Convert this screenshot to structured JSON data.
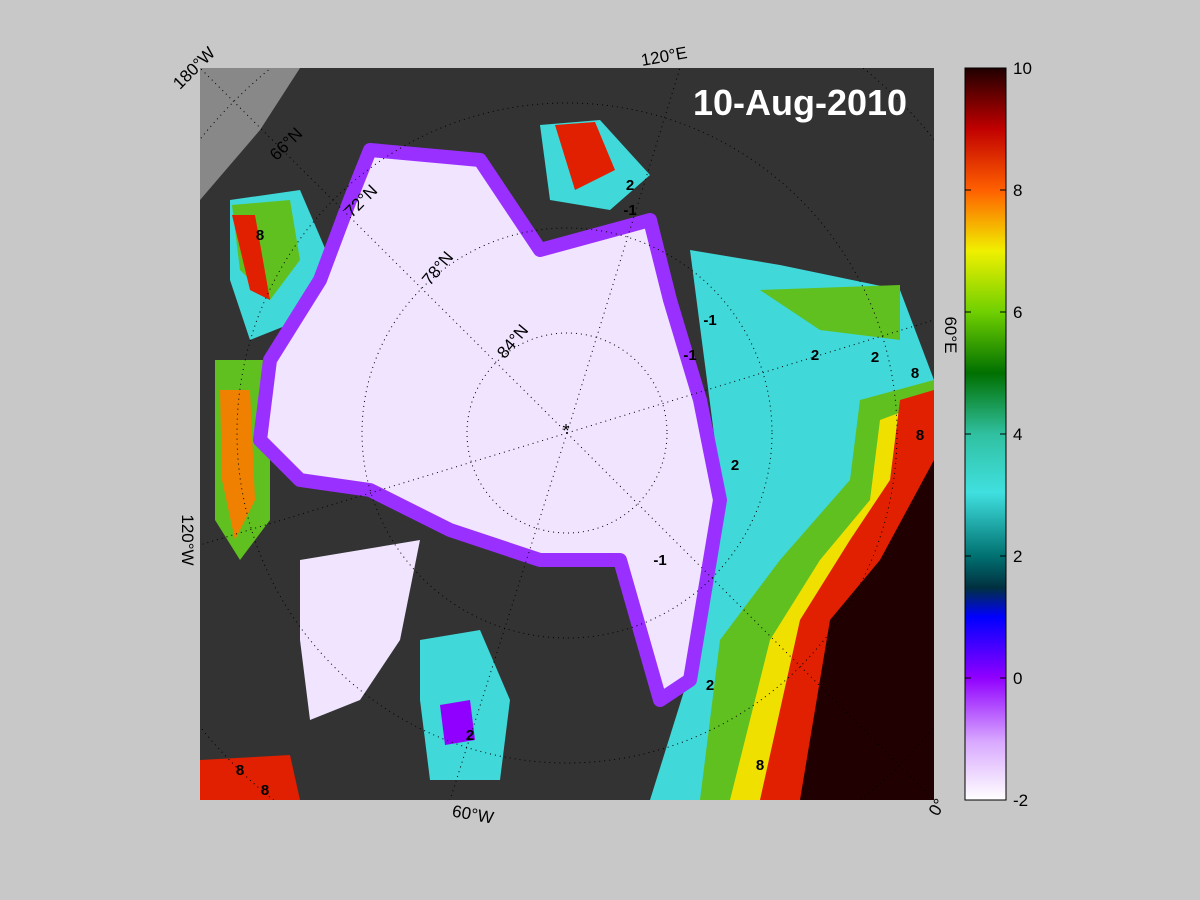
{
  "map": {
    "title": "10-Aug-2010",
    "longitude_labels": [
      "180°W",
      "120°E",
      "60°E",
      "0°",
      "60°W",
      "120°W"
    ],
    "latitude_labels": [
      "66°N",
      "72°N",
      "78°N",
      "84°N"
    ],
    "contour_labels": [
      "-1",
      "2",
      "8",
      "-1",
      "-1",
      "2",
      "2",
      "8",
      "8",
      "2",
      "2",
      "8",
      "-1",
      "2",
      "8",
      "8"
    ]
  },
  "colorbar": {
    "lim": [
      -2,
      10
    ],
    "ticks": [
      -2,
      0,
      2,
      4,
      6,
      8,
      10
    ]
  }
}
